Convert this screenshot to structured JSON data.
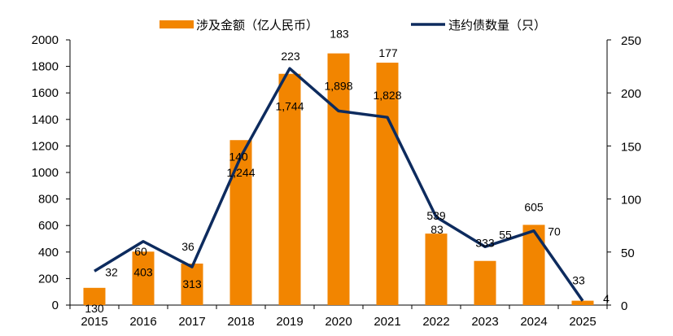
{
  "chart_data": {
    "type": "bar+line",
    "categories": [
      "2015",
      "2016",
      "2017",
      "2018",
      "2019",
      "2020",
      "2021",
      "2022",
      "2023",
      "2024",
      "2025"
    ],
    "series": [
      {
        "name": "涉及金额（亿人民币）",
        "type": "bar",
        "axis": "left",
        "color": "#F28500",
        "values": [
          130,
          403,
          313,
          1244,
          1744,
          1898,
          1828,
          539,
          333,
          605,
          33
        ],
        "labels": [
          "130",
          "403",
          "313",
          "1,244",
          "1,744",
          "1,898",
          "1,828",
          "539",
          "333",
          "605",
          "33"
        ]
      },
      {
        "name": "违约债数量（只）",
        "type": "line",
        "axis": "right",
        "color": "#0D2B5E",
        "values": [
          32,
          60,
          36,
          140,
          223,
          183,
          177,
          83,
          55,
          70,
          4
        ],
        "labels": [
          "32",
          "60",
          "36",
          "140",
          "223",
          "183",
          "177",
          "83",
          "55",
          "70",
          "4"
        ]
      }
    ],
    "y_left": {
      "min": 0,
      "max": 2000,
      "ticks": [
        "0",
        "200",
        "400",
        "600",
        "800",
        "1000",
        "1200",
        "1400",
        "1600",
        "1800",
        "2000"
      ]
    },
    "y_right": {
      "min": 0,
      "max": 250,
      "ticks": [
        "0",
        "50",
        "100",
        "150",
        "200",
        "250"
      ]
    },
    "grid": false,
    "legend_position": "top"
  }
}
